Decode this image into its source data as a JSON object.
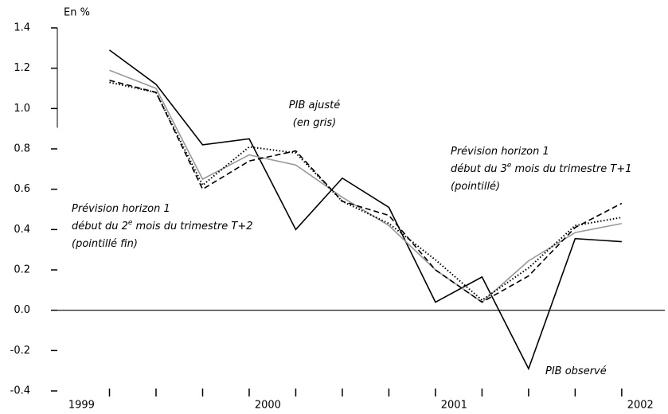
{
  "chart_data": {
    "type": "line",
    "y_label": "En %",
    "x": [
      1999.15,
      1999.4,
      1999.65,
      1999.9,
      2000.15,
      2000.4,
      2000.65,
      2000.9,
      2001.15,
      2001.4,
      2001.65,
      2001.9
    ],
    "xlim": [
      1998.87,
      2002.11
    ],
    "xticks": [
      1999,
      2000,
      2001,
      2002
    ],
    "ylim": [
      -0.4,
      1.4
    ],
    "yticks": [
      {
        "value": -0.4,
        "label": "-0.4"
      },
      {
        "value": -0.2,
        "label": "-0.2"
      },
      {
        "value": 0,
        "label": "0.0"
      },
      0.2,
      0.4,
      0.6,
      0.8,
      {
        "value": 1,
        "label": "1.0"
      },
      1.2,
      1.4
    ],
    "series": [
      {
        "color": "#000000",
        "style": "solid",
        "values": [
          1.29,
          1.12,
          0.82,
          0.85,
          0.4,
          0.655,
          0.51,
          0.04,
          0.165,
          -0.29,
          0.355,
          0.34
        ]
      },
      {
        "color": "#999999",
        "style": "solid",
        "values": [
          1.19,
          1.1,
          0.65,
          0.77,
          0.72,
          0.56,
          0.42,
          0.2,
          0.04,
          0.245,
          0.385,
          0.43
        ]
      },
      {
        "color": "#000000",
        "style": "dashed",
        "values": [
          1.14,
          1.08,
          0.6,
          0.74,
          0.79,
          0.54,
          0.47,
          0.2,
          0.04,
          0.17,
          0.41,
          0.53
        ]
      },
      {
        "color": "#000000",
        "style": "dotted",
        "values": [
          1.13,
          1.08,
          0.62,
          0.81,
          0.78,
          0.54,
          0.43,
          0.25,
          0.05,
          0.21,
          0.42,
          0.46
        ]
      }
    ],
    "annotations": [
      {
        "lines": [
          [
            "PIB ajusté"
          ],
          [
            "(en gris)"
          ]
        ]
      },
      {
        "lines": [
          [
            "Prévision horizon 1"
          ],
          [
            "début du 3",
            "e",
            " mois du trimestre T+1"
          ],
          [
            "(pointillé)"
          ]
        ]
      },
      {
        "lines": [
          [
            "Prévision horizon 1"
          ],
          [
            "début du 2",
            "e",
            " mois du trimestre T+2"
          ],
          [
            "(pointillé fin)"
          ]
        ]
      },
      {
        "lines": [
          [
            "PIB observé"
          ]
        ]
      }
    ]
  }
}
